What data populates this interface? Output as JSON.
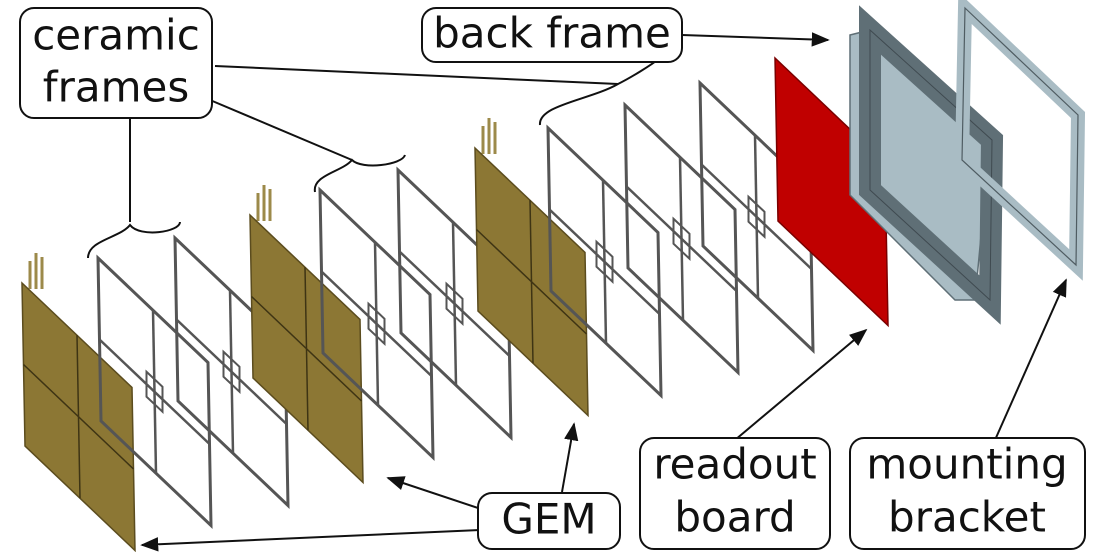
{
  "labels": {
    "ceramic_frames": [
      "ceramic",
      "frames"
    ],
    "back_frame": "back frame",
    "gem": "GEM",
    "readout_board": [
      "readout",
      "board"
    ],
    "mounting_bracket": [
      "mounting",
      "bracket"
    ]
  }
}
